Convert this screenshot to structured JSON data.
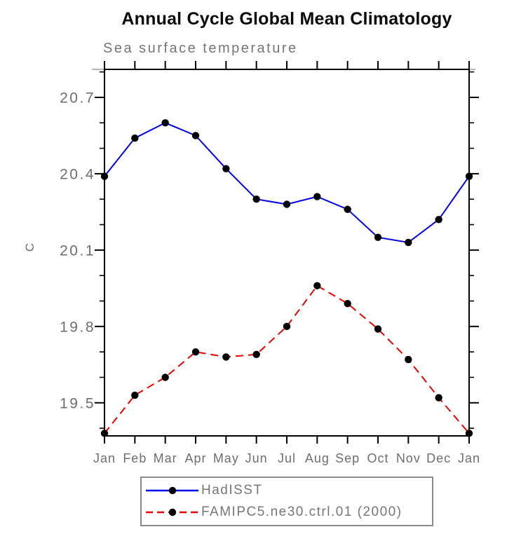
{
  "chart_data": {
    "type": "line",
    "title": "Annual Cycle Global Mean Climatology",
    "subtitle": "Sea surface temperature",
    "xlabel": "",
    "ylabel": "C",
    "categories": [
      "Jan",
      "Feb",
      "Mar",
      "Apr",
      "May",
      "Jun",
      "Jul",
      "Aug",
      "Sep",
      "Oct",
      "Nov",
      "Dec",
      "Jan"
    ],
    "series": [
      {
        "name": "HadISST",
        "color": "#0000ee",
        "line_style": "solid",
        "marker": "filled-circle",
        "marker_color": "#000000",
        "values": [
          20.39,
          20.54,
          20.6,
          20.55,
          20.42,
          20.3,
          20.28,
          20.31,
          20.26,
          20.15,
          20.13,
          20.22,
          20.39
        ]
      },
      {
        "name": "FAMIPC5.ne30.ctrl.01 (2000)",
        "color": "#ee0000",
        "line_style": "dashed",
        "marker": "filled-circle",
        "marker_color": "#000000",
        "values": [
          19.38,
          19.53,
          19.6,
          19.7,
          19.68,
          19.69,
          19.8,
          19.96,
          19.89,
          19.79,
          19.67,
          19.52,
          19.38
        ]
      }
    ],
    "ylim": [
      19.37,
      20.81
    ],
    "yticks_major": [
      19.5,
      19.8,
      20.1,
      20.4,
      20.7
    ],
    "yticks_minor": [
      19.4,
      19.6,
      19.7,
      19.9,
      20.0,
      20.2,
      20.3,
      20.5,
      20.6,
      20.8
    ],
    "grid": false,
    "legend_position": "bottom"
  },
  "colors": {
    "axis": "#000000",
    "tick_label": "#6e6e6e",
    "title_text": "#0a0a0a",
    "subtitle_text": "#767676",
    "legend_border": "#8a8a8a",
    "frame_overhang": "#b8b8b8",
    "hadisst_blue": "#0000ee",
    "model_red": "#ee0000",
    "marker_black": "#000000"
  }
}
